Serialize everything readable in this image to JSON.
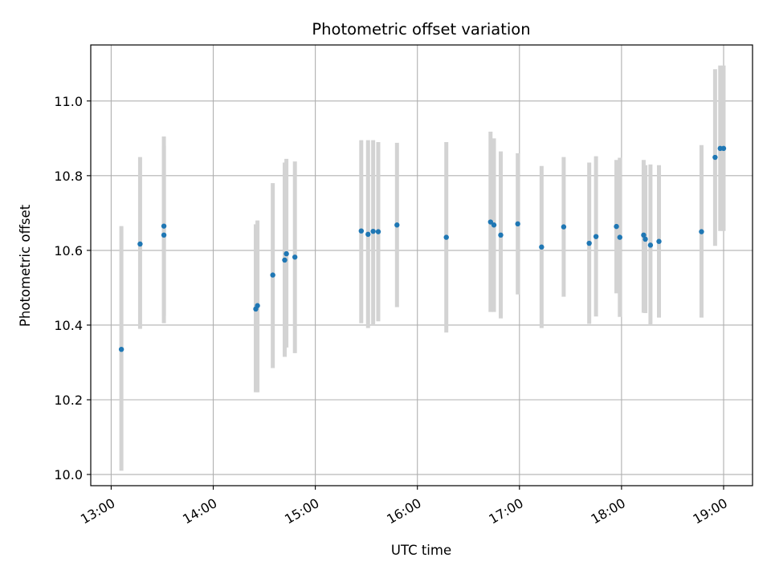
{
  "chart_data": {
    "type": "scatter",
    "title": "Photometric offset variation",
    "xlabel": "UTC time",
    "ylabel": "Photometric offset",
    "x_ticks": [
      "13:00",
      "14:00",
      "15:00",
      "16:00",
      "17:00",
      "18:00",
      "19:00"
    ],
    "y_ticks": [
      "10.0",
      "10.2",
      "10.4",
      "10.6",
      "10.8",
      "11.0"
    ],
    "xlim": [
      "12:48",
      "19:17"
    ],
    "ylim": [
      9.97,
      11.15
    ],
    "grid": true,
    "marker_color": "#1f77b4",
    "errorbar_color": "#d3d3d3",
    "series": [
      {
        "points": [
          {
            "x": "13:06",
            "y": 10.335,
            "err_low": 10.01,
            "err_high": 10.665
          },
          {
            "x": "13:17",
            "y": 10.617,
            "err_low": 10.39,
            "err_high": 10.85
          },
          {
            "x": "13:31",
            "y": 10.641,
            "err_low": 10.405,
            "err_high": 10.88
          },
          {
            "x": "13:31",
            "y": 10.665,
            "err_low": 10.425,
            "err_high": 10.905
          },
          {
            "x": "14:25",
            "y": 10.443,
            "err_low": 10.22,
            "err_high": 10.67
          },
          {
            "x": "14:26",
            "y": 10.452,
            "err_low": 10.22,
            "err_high": 10.68
          },
          {
            "x": "14:35",
            "y": 10.534,
            "err_low": 10.285,
            "err_high": 10.78
          },
          {
            "x": "14:42",
            "y": 10.574,
            "err_low": 10.315,
            "err_high": 10.835
          },
          {
            "x": "14:43",
            "y": 10.591,
            "err_low": 10.34,
            "err_high": 10.845
          },
          {
            "x": "14:48",
            "y": 10.582,
            "err_low": 10.325,
            "err_high": 10.838
          },
          {
            "x": "15:27",
            "y": 10.652,
            "err_low": 10.405,
            "err_high": 10.895
          },
          {
            "x": "15:31",
            "y": 10.643,
            "err_low": 10.392,
            "err_high": 10.895
          },
          {
            "x": "15:34",
            "y": 10.651,
            "err_low": 10.4,
            "err_high": 10.895
          },
          {
            "x": "15:37",
            "y": 10.65,
            "err_low": 10.41,
            "err_high": 10.89
          },
          {
            "x": "15:48",
            "y": 10.668,
            "err_low": 10.448,
            "err_high": 10.888
          },
          {
            "x": "16:17",
            "y": 10.635,
            "err_low": 10.38,
            "err_high": 10.89
          },
          {
            "x": "16:43",
            "y": 10.676,
            "err_low": 10.435,
            "err_high": 10.918
          },
          {
            "x": "16:45",
            "y": 10.668,
            "err_low": 10.435,
            "err_high": 10.9
          },
          {
            "x": "16:49",
            "y": 10.641,
            "err_low": 10.418,
            "err_high": 10.865
          },
          {
            "x": "16:59",
            "y": 10.671,
            "err_low": 10.482,
            "err_high": 10.86
          },
          {
            "x": "17:13",
            "y": 10.609,
            "err_low": 10.392,
            "err_high": 10.826
          },
          {
            "x": "17:26",
            "y": 10.663,
            "err_low": 10.476,
            "err_high": 10.85
          },
          {
            "x": "17:41",
            "y": 10.619,
            "err_low": 10.403,
            "err_high": 10.835
          },
          {
            "x": "17:45",
            "y": 10.637,
            "err_low": 10.423,
            "err_high": 10.852
          },
          {
            "x": "17:57",
            "y": 10.664,
            "err_low": 10.485,
            "err_high": 10.842
          },
          {
            "x": "17:59",
            "y": 10.635,
            "err_low": 10.422,
            "err_high": 10.848
          },
          {
            "x": "18:13",
            "y": 10.641,
            "err_low": 10.433,
            "err_high": 10.842
          },
          {
            "x": "18:14",
            "y": 10.63,
            "err_low": 10.432,
            "err_high": 10.828
          },
          {
            "x": "18:17",
            "y": 10.614,
            "err_low": 10.398,
            "err_high": 10.83
          },
          {
            "x": "18:22",
            "y": 10.624,
            "err_low": 10.42,
            "err_high": 10.828
          },
          {
            "x": "18:47",
            "y": 10.65,
            "err_low": 10.42,
            "err_high": 10.882
          },
          {
            "x": "18:55",
            "y": 10.849,
            "err_low": 10.612,
            "err_high": 11.085
          },
          {
            "x": "18:58",
            "y": 10.873,
            "err_low": 10.652,
            "err_high": 11.095
          },
          {
            "x": "19:00",
            "y": 10.873,
            "err_low": 10.652,
            "err_high": 11.095
          }
        ]
      }
    ]
  }
}
